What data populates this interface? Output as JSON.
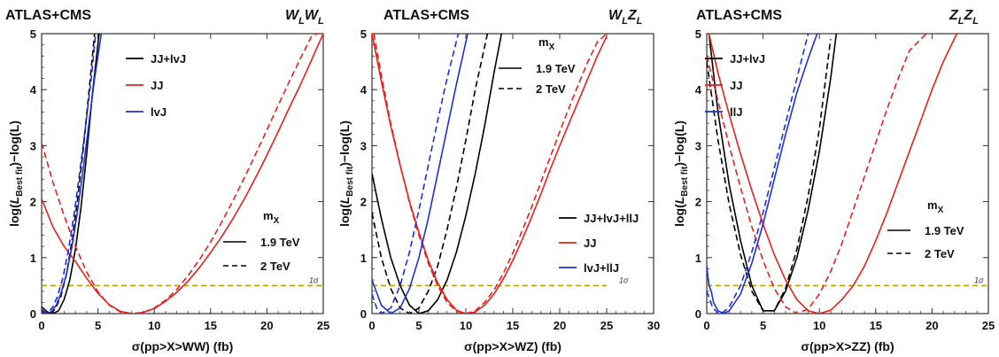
{
  "chart_data": [
    {
      "type": "line",
      "title": "ATLAS+CMS",
      "channel": "W_LW_L",
      "xlabel": "σ(pp>X>WW) (fb)",
      "ylabel": "log(L_Best fit)−log(L)",
      "xlim": [
        0,
        25
      ],
      "ylim": [
        0,
        5
      ],
      "xticks": [
        "0",
        "5",
        "10",
        "15",
        "20",
        "25"
      ],
      "yticks": [
        "0",
        "1",
        "2",
        "3",
        "4",
        "5"
      ],
      "sigma_line": {
        "y": 0.5,
        "label": "1σ",
        "color": "#b5a400"
      },
      "legend": {
        "entries": [
          {
            "label": "JJ+lvJ",
            "color": "#000000"
          },
          {
            "label": "JJ",
            "color": "#e8201e"
          },
          {
            "label": "lvJ",
            "color": "#1f2fd6"
          }
        ],
        "mass_title": "m_X",
        "mass_entries": [
          {
            "label": "1.9 TeV",
            "style": "solid"
          },
          {
            "label": "2 TeV",
            "style": "dashed"
          }
        ]
      },
      "series": [
        {
          "name": "JJ+lvJ",
          "mass": "1.9 TeV",
          "color": "#000000",
          "style": "solid",
          "x": [
            0,
            0.5,
            1.0,
            1.5,
            2.0,
            2.5,
            3.0,
            3.5,
            4.0,
            4.5,
            5.1
          ],
          "y": [
            0.12,
            0.03,
            0.0,
            0.05,
            0.25,
            0.6,
            1.15,
            1.9,
            2.85,
            3.9,
            5.0
          ]
        },
        {
          "name": "JJ+lvJ",
          "mass": "2 TeV",
          "color": "#000000",
          "style": "dashed",
          "x": [
            0,
            0.4,
            0.8,
            1.2,
            1.7,
            2.2,
            2.7,
            3.2,
            3.7,
            4.2,
            4.7
          ],
          "y": [
            0.07,
            0.01,
            0.0,
            0.08,
            0.3,
            0.7,
            1.3,
            2.05,
            2.95,
            3.95,
            5.0
          ]
        },
        {
          "name": "JJ",
          "mass": "1.9 TeV",
          "color": "#e8201e",
          "style": "solid",
          "x": [
            0,
            1,
            2,
            3,
            4,
            5,
            6,
            7,
            8,
            8.5,
            9,
            10,
            11,
            12,
            13,
            14,
            15,
            16,
            17,
            18,
            19,
            20,
            21,
            22,
            23,
            24,
            25
          ],
          "y": [
            2.05,
            1.55,
            1.2,
            0.93,
            0.63,
            0.36,
            0.16,
            0.04,
            0.0,
            0.0,
            0.02,
            0.09,
            0.22,
            0.38,
            0.58,
            0.82,
            1.09,
            1.38,
            1.7,
            2.05,
            2.43,
            2.83,
            3.25,
            3.68,
            4.1,
            4.55,
            5.0
          ]
        },
        {
          "name": "JJ",
          "mass": "2 TeV",
          "color": "#e8201e",
          "style": "dashed",
          "x": [
            0,
            1,
            2,
            3,
            4,
            5,
            6,
            7,
            8,
            9,
            10,
            11,
            12,
            13,
            14,
            15,
            16,
            17,
            18,
            19,
            20,
            21,
            22,
            23,
            24,
            24.5
          ],
          "y": [
            3.05,
            2.35,
            1.75,
            1.2,
            0.74,
            0.39,
            0.15,
            0.03,
            0.0,
            0.02,
            0.1,
            0.24,
            0.43,
            0.68,
            0.96,
            1.28,
            1.64,
            2.02,
            2.43,
            2.85,
            3.28,
            3.72,
            4.15,
            4.57,
            4.97,
            5.0
          ]
        },
        {
          "name": "lvJ",
          "mass": "1.9 TeV",
          "color": "#1f2fd6",
          "style": "solid",
          "x": [
            0,
            0.3,
            0.6,
            0.9,
            1.3,
            1.7,
            2.2,
            2.7,
            3.2,
            3.7,
            4.2,
            4.7,
            5.3
          ],
          "y": [
            0.05,
            0.01,
            0.0,
            0.04,
            0.15,
            0.35,
            0.7,
            1.2,
            1.85,
            2.6,
            3.4,
            4.2,
            5.0
          ]
        },
        {
          "name": "lvJ",
          "mass": "2 TeV",
          "color": "#1f2fd6",
          "style": "dashed",
          "x": [
            0,
            0.3,
            0.6,
            1.0,
            1.4,
            1.9,
            2.4,
            2.9,
            3.4,
            3.9,
            4.4,
            4.8
          ],
          "y": [
            0.03,
            0.0,
            0.02,
            0.12,
            0.3,
            0.65,
            1.15,
            1.8,
            2.55,
            3.35,
            4.2,
            5.0
          ]
        }
      ]
    },
    {
      "type": "line",
      "title": "ATLAS+CMS",
      "channel": "W_LZ_L",
      "xlabel": "σ(pp>X>WZ) (fb)",
      "ylabel": "log(L_Best fit)−log(L)",
      "xlim": [
        0,
        30
      ],
      "ylim": [
        0,
        5
      ],
      "xticks": [
        "0",
        "5",
        "10",
        "15",
        "20",
        "25",
        "30"
      ],
      "yticks": [
        "0",
        "1",
        "2",
        "3",
        "4",
        "5"
      ],
      "sigma_line": {
        "y": 0.5,
        "label": "1σ",
        "color": "#b5a400"
      },
      "legend": {
        "entries": [
          {
            "label": "JJ+lvJ+llJ",
            "color": "#000000"
          },
          {
            "label": "JJ",
            "color": "#e8201e"
          },
          {
            "label": "lvJ+llJ",
            "color": "#1f2fd6"
          }
        ],
        "mass_title": "m_X",
        "mass_entries": [
          {
            "label": "1.9 TeV",
            "style": "solid"
          },
          {
            "label": "2 TeV",
            "style": "dashed"
          }
        ]
      },
      "series": [
        {
          "name": "JJ+lvJ+llJ",
          "mass": "1.9 TeV",
          "color": "#000000",
          "style": "solid",
          "x": [
            0,
            1,
            2,
            3,
            4,
            5,
            6,
            7,
            8,
            9,
            10,
            11,
            12,
            13,
            13.8
          ],
          "y": [
            2.5,
            1.7,
            1.0,
            0.5,
            0.15,
            0.0,
            0.05,
            0.25,
            0.6,
            1.1,
            1.75,
            2.5,
            3.35,
            4.3,
            5.0
          ]
        },
        {
          "name": "JJ+lvJ+llJ",
          "mass": "2 TeV",
          "color": "#000000",
          "style": "dashed",
          "x": [
            0,
            1,
            2,
            3,
            4,
            5,
            6,
            7,
            8,
            9,
            10,
            11,
            12.3
          ],
          "y": [
            1.8,
            1.0,
            0.45,
            0.1,
            0.0,
            0.1,
            0.4,
            0.85,
            1.5,
            2.25,
            3.1,
            4.0,
            5.0
          ]
        },
        {
          "name": "JJ",
          "mass": "1.9 TeV",
          "color": "#e8201e",
          "style": "solid",
          "x": [
            0,
            1,
            2,
            3,
            4,
            5,
            6,
            7,
            8,
            9,
            10,
            11,
            12,
            13,
            14,
            15,
            16,
            17,
            18,
            19,
            20,
            21,
            22,
            23,
            24,
            25
          ],
          "y": [
            5.0,
            4.15,
            3.35,
            2.65,
            2.0,
            1.45,
            0.95,
            0.55,
            0.25,
            0.06,
            0.0,
            0.03,
            0.15,
            0.35,
            0.62,
            0.95,
            1.32,
            1.72,
            2.14,
            2.58,
            3.0,
            3.4,
            3.8,
            4.2,
            4.6,
            4.95
          ]
        },
        {
          "name": "JJ",
          "mass": "2 TeV",
          "color": "#e8201e",
          "style": "dashed",
          "x": [
            0.2,
            1,
            2,
            3,
            4,
            5,
            6,
            7,
            8,
            9,
            10,
            11,
            12,
            13,
            14,
            15,
            16,
            17,
            18,
            19,
            20,
            21,
            22,
            23,
            24,
            25
          ],
          "y": [
            5.0,
            4.25,
            3.4,
            2.65,
            1.98,
            1.4,
            0.9,
            0.5,
            0.2,
            0.04,
            0.0,
            0.05,
            0.2,
            0.42,
            0.72,
            1.08,
            1.48,
            1.9,
            2.35,
            2.8,
            3.25,
            3.68,
            4.1,
            4.5,
            4.85,
            5.0
          ]
        },
        {
          "name": "lvJ+llJ",
          "mass": "1.9 TeV",
          "color": "#1f2fd6",
          "style": "solid",
          "x": [
            0,
            1,
            2,
            3,
            4,
            5,
            6,
            7,
            8,
            9,
            10.2
          ],
          "y": [
            0.6,
            0.15,
            0.0,
            0.1,
            0.45,
            1.0,
            1.7,
            2.5,
            3.3,
            4.1,
            5.0
          ]
        },
        {
          "name": "lvJ+llJ",
          "mass": "2 TeV",
          "color": "#1f2fd6",
          "style": "dashed",
          "x": [
            0,
            0.5,
            1,
            2,
            3,
            4,
            5,
            6,
            7,
            8,
            9.2
          ],
          "y": [
            0.35,
            0.1,
            0.0,
            0.1,
            0.5,
            1.1,
            1.85,
            2.65,
            3.45,
            4.2,
            5.0
          ]
        }
      ]
    },
    {
      "type": "line",
      "title": "ATLAS+CMS",
      "channel": "Z_LZ_L",
      "xlabel": "σ(pp>X>ZZ) (fb)",
      "ylabel": "log(L_Best fit)−log(L)",
      "xlim": [
        0,
        25
      ],
      "ylim": [
        0,
        5
      ],
      "xticks": [
        "0",
        "5",
        "10",
        "15",
        "20",
        "25"
      ],
      "yticks": [
        "0",
        "1",
        "2",
        "3",
        "4",
        "5"
      ],
      "sigma_line": {
        "y": 0.5,
        "label": "1σ",
        "color": "#b5a400"
      },
      "legend": {
        "entries": [
          {
            "label": "JJ+lvJ",
            "color": "#000000"
          },
          {
            "label": "JJ",
            "color": "#e8201e"
          },
          {
            "label": "llJ",
            "color": "#1f2fd6"
          }
        ],
        "mass_title": "m_X",
        "mass_entries": [
          {
            "label": "1.9 TeV",
            "style": "solid"
          },
          {
            "label": "2 TeV",
            "style": "dashed"
          }
        ]
      },
      "series": [
        {
          "name": "JJ+lvJ",
          "mass": "1.9 TeV",
          "color": "#000000",
          "style": "solid",
          "x": [
            0.2,
            1,
            2,
            3,
            4,
            5,
            6,
            7,
            8,
            9,
            10,
            11,
            11.5
          ],
          "y": [
            5.0,
            3.6,
            2.3,
            1.3,
            0.5,
            0.05,
            0.05,
            0.4,
            1.0,
            1.85,
            2.9,
            4.2,
            5.0
          ]
        },
        {
          "name": "JJ+lvJ",
          "mass": "2 TeV",
          "color": "#000000",
          "style": "dashed",
          "x": [
            0,
            1,
            2,
            3,
            4,
            5,
            6,
            7,
            8,
            9,
            10,
            11
          ],
          "y": [
            4.5,
            3.1,
            1.95,
            1.05,
            0.4,
            0.05,
            0.05,
            0.45,
            1.15,
            2.1,
            3.3,
            4.9
          ]
        },
        {
          "name": "JJ",
          "mass": "1.9 TeV",
          "color": "#e8201e",
          "style": "solid",
          "x": [
            0.2,
            1,
            2,
            3,
            4,
            5,
            6,
            7,
            8,
            9,
            10,
            11,
            12,
            13,
            14,
            15,
            16,
            17,
            18,
            19,
            20,
            21,
            22.2
          ],
          "y": [
            5.0,
            4.3,
            3.55,
            2.85,
            2.2,
            1.6,
            1.05,
            0.6,
            0.25,
            0.05,
            0.0,
            0.06,
            0.25,
            0.5,
            0.85,
            1.3,
            1.8,
            2.35,
            2.9,
            3.45,
            4.0,
            4.5,
            5.0
          ]
        },
        {
          "name": "JJ",
          "mass": "2 TeV",
          "color": "#e8201e",
          "style": "dashed",
          "x": [
            0,
            1,
            2,
            3,
            4,
            5,
            6,
            7,
            8,
            9,
            10,
            11,
            12,
            13,
            14,
            15,
            16,
            17,
            18,
            19.5
          ],
          "y": [
            4.6,
            3.8,
            3.0,
            2.25,
            1.55,
            0.95,
            0.45,
            0.12,
            0.0,
            0.08,
            0.35,
            0.75,
            1.25,
            1.85,
            2.45,
            3.05,
            3.65,
            4.2,
            4.7,
            5.0
          ]
        },
        {
          "name": "llJ",
          "mass": "1.9 TeV",
          "color": "#1f2fd6",
          "style": "solid",
          "x": [
            0,
            0.2,
            0.4,
            0.6,
            1,
            1.5,
            2,
            3,
            4,
            5,
            6,
            7,
            8,
            9,
            9.8
          ],
          "y": [
            0.85,
            0.5,
            0.4,
            0.2,
            0.05,
            0.0,
            0.05,
            0.35,
            0.9,
            1.6,
            2.4,
            3.2,
            3.95,
            4.55,
            5.0
          ]
        },
        {
          "name": "llJ",
          "mass": "2 TeV",
          "color": "#1f2fd6",
          "style": "dashed",
          "x": [
            0,
            0.5,
            1,
            1.5,
            2,
            3,
            4,
            5,
            6,
            7,
            8,
            9
          ],
          "y": [
            0.4,
            0.12,
            0.0,
            0.03,
            0.12,
            0.5,
            1.1,
            1.8,
            2.6,
            3.4,
            4.2,
            5.0
          ]
        }
      ]
    }
  ]
}
